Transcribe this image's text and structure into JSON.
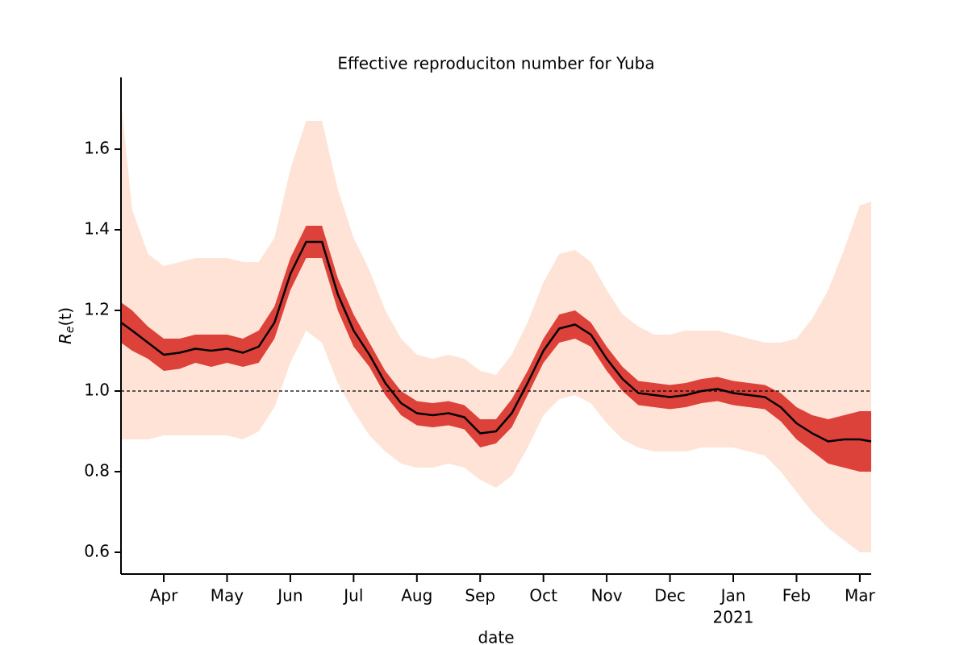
{
  "chart_data": {
    "type": "line",
    "title": "Effective reproduciton number for Yuba",
    "xlabel": "date",
    "ylabel": {
      "base": "R",
      "sub": "e",
      "tail": "(t)"
    },
    "x": [
      3.324,
      3.5,
      3.75,
      4,
      4.25,
      4.5,
      4.75,
      5,
      5.25,
      5.5,
      5.75,
      6,
      6.25,
      6.5,
      6.75,
      7,
      7.25,
      7.5,
      7.75,
      8,
      8.25,
      8.5,
      8.75,
      9,
      9.25,
      9.5,
      9.75,
      10,
      10.25,
      10.5,
      10.75,
      11,
      11.25,
      11.5,
      11.75,
      12,
      12.25,
      12.5,
      12.75,
      13,
      13.25,
      13.5,
      13.75,
      14,
      14.25,
      14.5,
      14.75,
      15,
      15.18
    ],
    "values": [
      1.17,
      1.15,
      1.12,
      1.09,
      1.095,
      1.105,
      1.1,
      1.105,
      1.095,
      1.11,
      1.17,
      1.29,
      1.37,
      1.37,
      1.24,
      1.15,
      1.09,
      1.02,
      0.97,
      0.945,
      0.94,
      0.945,
      0.935,
      0.895,
      0.9,
      0.945,
      1.02,
      1.1,
      1.155,
      1.165,
      1.14,
      1.08,
      1.03,
      0.995,
      0.99,
      0.985,
      0.99,
      1.0,
      1.005,
      0.995,
      0.99,
      0.985,
      0.96,
      0.92,
      0.895,
      0.875,
      0.88,
      0.88,
      0.875
    ],
    "color": "#000000",
    "bands": [
      {
        "color": "#fdd9c8",
        "upper": [
          1.72,
          1.45,
          1.34,
          1.31,
          1.32,
          1.33,
          1.33,
          1.33,
          1.32,
          1.32,
          1.38,
          1.55,
          1.67,
          1.67,
          1.5,
          1.38,
          1.3,
          1.2,
          1.13,
          1.09,
          1.08,
          1.09,
          1.08,
          1.05,
          1.04,
          1.09,
          1.17,
          1.27,
          1.34,
          1.35,
          1.32,
          1.25,
          1.19,
          1.16,
          1.14,
          1.14,
          1.15,
          1.15,
          1.15,
          1.14,
          1.13,
          1.12,
          1.12,
          1.13,
          1.18,
          1.25,
          1.35,
          1.46,
          1.47
        ],
        "lower": [
          0.88,
          0.88,
          0.88,
          0.89,
          0.89,
          0.89,
          0.89,
          0.89,
          0.88,
          0.9,
          0.96,
          1.07,
          1.15,
          1.12,
          1.02,
          0.95,
          0.89,
          0.85,
          0.82,
          0.81,
          0.81,
          0.82,
          0.81,
          0.78,
          0.76,
          0.79,
          0.86,
          0.94,
          0.98,
          0.99,
          0.97,
          0.92,
          0.88,
          0.86,
          0.85,
          0.85,
          0.85,
          0.86,
          0.86,
          0.86,
          0.85,
          0.84,
          0.8,
          0.75,
          0.7,
          0.66,
          0.63,
          0.6,
          0.6
        ]
      },
      {
        "color": "#d6261f",
        "upper": [
          1.22,
          1.2,
          1.16,
          1.13,
          1.13,
          1.14,
          1.14,
          1.14,
          1.13,
          1.15,
          1.21,
          1.33,
          1.41,
          1.41,
          1.28,
          1.19,
          1.12,
          1.05,
          1.0,
          0.975,
          0.97,
          0.975,
          0.965,
          0.93,
          0.93,
          0.98,
          1.05,
          1.13,
          1.19,
          1.2,
          1.17,
          1.11,
          1.06,
          1.025,
          1.02,
          1.015,
          1.02,
          1.03,
          1.035,
          1.025,
          1.02,
          1.015,
          0.995,
          0.96,
          0.94,
          0.93,
          0.94,
          0.95,
          0.95
        ],
        "lower": [
          1.12,
          1.1,
          1.08,
          1.05,
          1.055,
          1.07,
          1.06,
          1.07,
          1.06,
          1.07,
          1.13,
          1.25,
          1.33,
          1.33,
          1.2,
          1.11,
          1.06,
          0.99,
          0.94,
          0.915,
          0.91,
          0.915,
          0.905,
          0.86,
          0.87,
          0.91,
          0.99,
          1.07,
          1.12,
          1.13,
          1.11,
          1.05,
          1.0,
          0.965,
          0.96,
          0.955,
          0.96,
          0.97,
          0.975,
          0.965,
          0.96,
          0.955,
          0.925,
          0.88,
          0.85,
          0.82,
          0.81,
          0.8,
          0.8
        ]
      }
    ],
    "hline": 1.0,
    "xlim": [
      3.324,
      15.18
    ],
    "ylim": [
      0.546,
      1.778
    ],
    "xticks": [
      {
        "value": 4,
        "label": "Apr"
      },
      {
        "value": 5,
        "label": "May"
      },
      {
        "value": 6,
        "label": "Jun"
      },
      {
        "value": 7,
        "label": "Jul"
      },
      {
        "value": 8,
        "label": "Aug"
      },
      {
        "value": 9,
        "label": "Sep"
      },
      {
        "value": 10,
        "label": "Oct"
      },
      {
        "value": 11,
        "label": "Nov"
      },
      {
        "value": 12,
        "label": "Dec"
      },
      {
        "value": 13,
        "label": "Jan"
      },
      {
        "value": 14,
        "label": "Feb"
      },
      {
        "value": 15,
        "label": "Mar"
      }
    ],
    "x_year_labels": [
      {
        "value": 13,
        "label": "2021"
      }
    ],
    "yticks": [
      {
        "value": 0.6,
        "label": "0.6"
      },
      {
        "value": 0.8,
        "label": "0.8"
      },
      {
        "value": 1.0,
        "label": "1.0"
      },
      {
        "value": 1.2,
        "label": "1.2"
      },
      {
        "value": 1.4,
        "label": "1.4"
      },
      {
        "value": 1.6,
        "label": "1.6"
      }
    ],
    "grid": false
  }
}
